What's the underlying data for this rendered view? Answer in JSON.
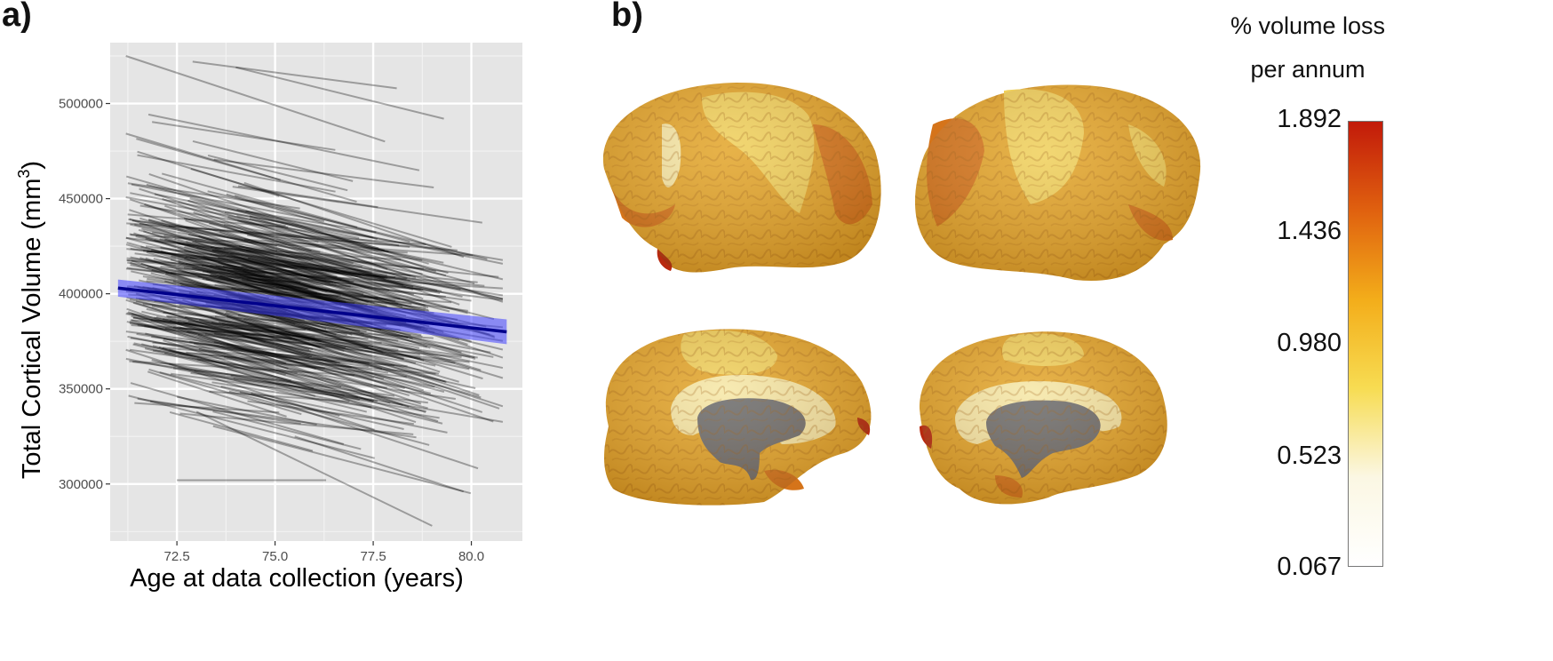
{
  "panel_a": {
    "label": "a)",
    "chart_data": {
      "type": "line",
      "title": "",
      "xlabel": "Age at data collection (years)",
      "ylabel": "Total Cortical Volume (mm",
      "ylabel_superscript": "3",
      "ylabel_close": ")",
      "xlim": [
        70.8,
        81.3
      ],
      "ylim": [
        270000,
        532000
      ],
      "x_ticks": [
        72.5,
        75.0,
        77.5,
        80.0
      ],
      "x_tick_labels": [
        "72.5",
        "75.0",
        "77.5",
        "80.0"
      ],
      "y_ticks": [
        300000,
        350000,
        400000,
        450000,
        500000
      ],
      "y_tick_labels": [
        "300000",
        "350000",
        "400000",
        "450000",
        "500000"
      ],
      "grid": true,
      "background": "#e5e5e5",
      "individual_series": {
        "description_count": 350,
        "color": "#000000",
        "opacity": 0.32,
        "age_range": [
          71.2,
          80.8
        ],
        "volume_range": [
          275000,
          525000
        ],
        "sample_lines": [
          {
            "x": [
              71.2,
              77.8
            ],
            "y": [
              525000,
              480000
            ]
          },
          {
            "x": [
              72.9,
              78.1
            ],
            "y": [
              522000,
              508000
            ]
          },
          {
            "x": [
              74.0,
              79.3
            ],
            "y": [
              519000,
              492000
            ]
          },
          {
            "x": [
              72.5,
              76.3
            ],
            "y": [
              302000,
              302000
            ]
          },
          {
            "x": [
              73.0,
              79.0
            ],
            "y": [
              338000,
              278000
            ]
          },
          {
            "x": [
              75.5,
              79.8
            ],
            "y": [
              325000,
              296000
            ]
          }
        ]
      },
      "trend": {
        "x": [
          71.0,
          80.9
        ],
        "y": [
          403000,
          380000
        ],
        "ci_halfwidth": [
          4500,
          6500
        ],
        "color": "#00008b",
        "ci_color": "#4040ff"
      }
    }
  },
  "panel_b": {
    "label": "b)",
    "colorbar": {
      "title_line1": "% volume loss",
      "title_line2": "per annum",
      "ticks": [
        "1.892",
        "1.436",
        "0.980",
        "0.523",
        "0.067"
      ],
      "colors": [
        "#c21a0a",
        "#e0610f",
        "#f3ad1a",
        "#f7dc52",
        "#fbf7e3",
        "#ffffff"
      ]
    },
    "brain_views": [
      "lateral-left",
      "lateral-right",
      "medial-left",
      "medial-right"
    ],
    "palette": {
      "orange": "#e3a529",
      "yellow": "#f0d05a",
      "pale": "#f6e7a5",
      "dark_orange": "#d5741a",
      "red": "#b8290f",
      "gray": "#6a6a6a"
    }
  }
}
